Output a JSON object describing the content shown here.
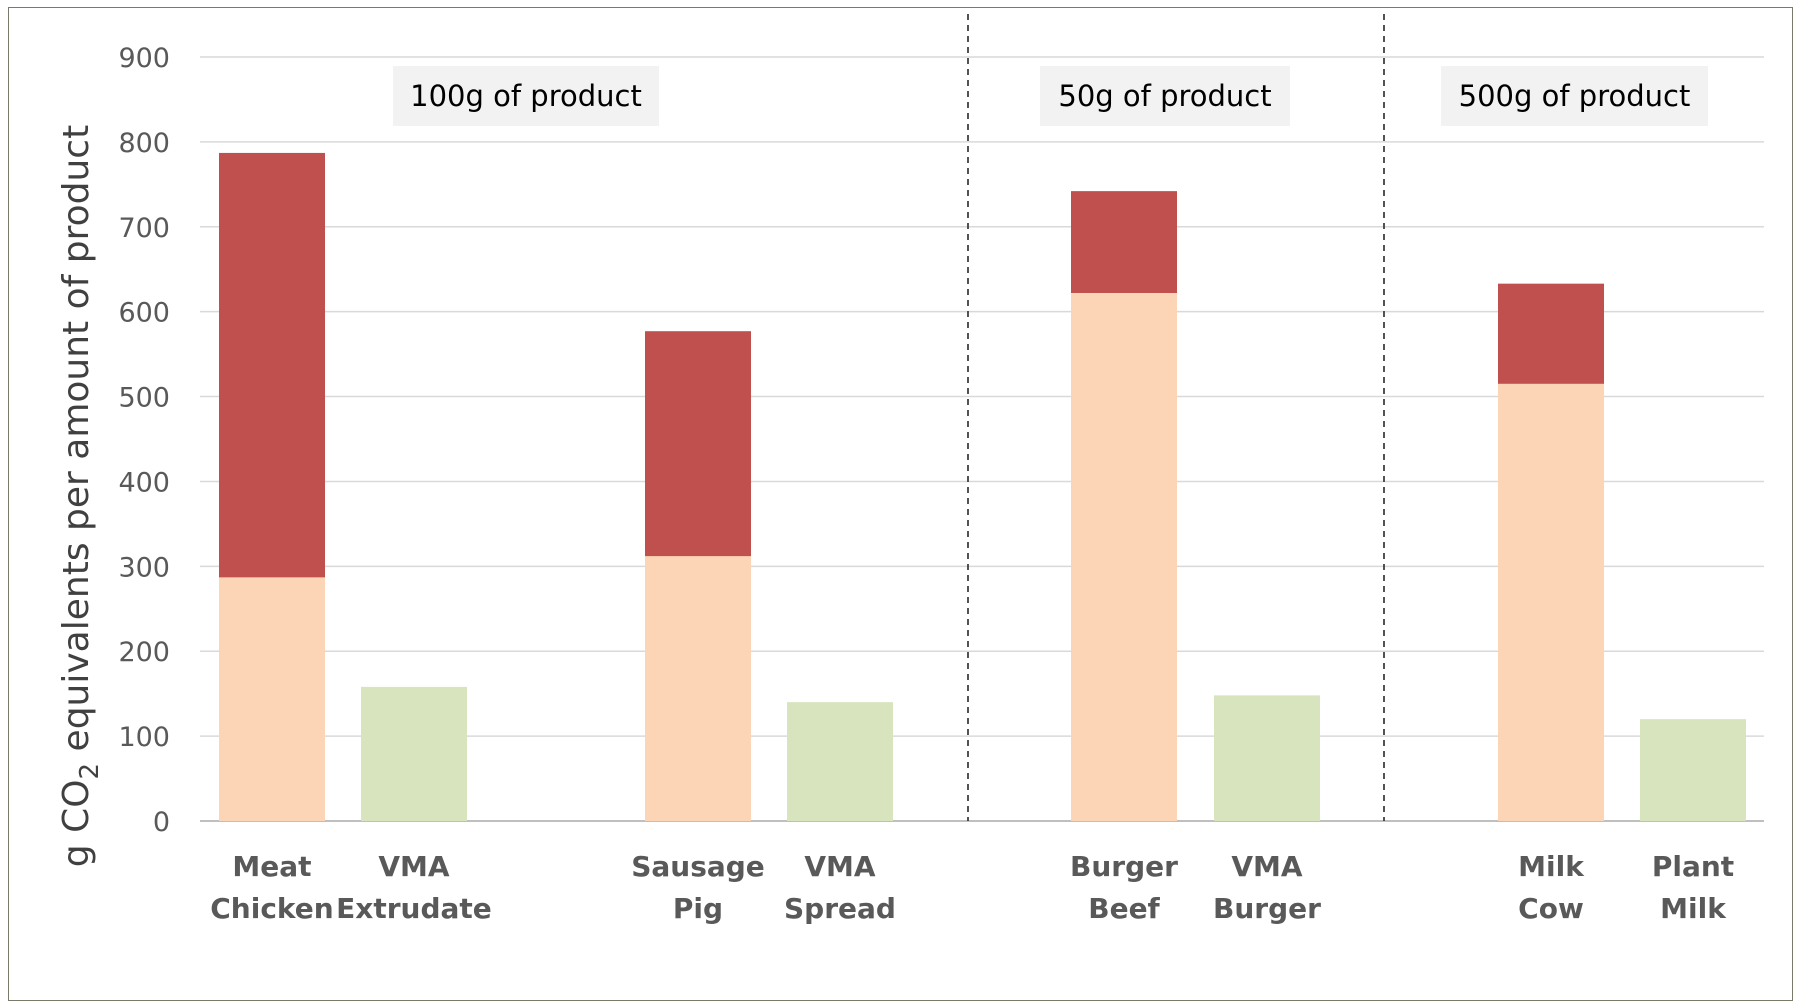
{
  "chart_data": {
    "type": "bar",
    "stacked": true,
    "title": "",
    "xlabel": "",
    "ylabel": {
      "prefix": "g CO",
      "subscript": "2",
      "suffix": " equivalents per amount of product"
    },
    "ylim": [
      0,
      900
    ],
    "yticks": [
      0,
      100,
      200,
      300,
      400,
      500,
      600,
      700,
      800,
      900
    ],
    "grid": true,
    "legend": "none",
    "categories": [
      {
        "line1": "Meat",
        "line2": "Chicken"
      },
      {
        "line1": "VMA",
        "line2": "Extrudate"
      },
      {
        "line1": "Sausage",
        "line2": "Pig"
      },
      {
        "line1": "VMA",
        "line2": "Spread"
      },
      {
        "line1": "Burger",
        "line2": "Beef"
      },
      {
        "line1": "VMA",
        "line2": "Burger"
      },
      {
        "line1": "Milk",
        "line2": "Cow"
      },
      {
        "line1": "Plant",
        "line2": "Milk"
      }
    ],
    "series": [
      {
        "color": "#fbd5b5",
        "values": [
          287,
          0,
          312,
          0,
          622,
          0,
          515,
          0
        ]
      },
      {
        "color": "#c0504d",
        "values": [
          500,
          0,
          265,
          0,
          120,
          0,
          118,
          0
        ]
      },
      {
        "color": "#d7e4bd",
        "values": [
          0,
          158,
          0,
          140,
          0,
          148,
          0,
          120
        ]
      }
    ],
    "groups": [
      {
        "label": "100g of product",
        "categories": [
          0,
          1,
          2,
          3
        ]
      },
      {
        "label": "50g of product",
        "categories": [
          4,
          5
        ]
      },
      {
        "label": "500g of product",
        "categories": [
          6,
          7
        ]
      }
    ]
  }
}
